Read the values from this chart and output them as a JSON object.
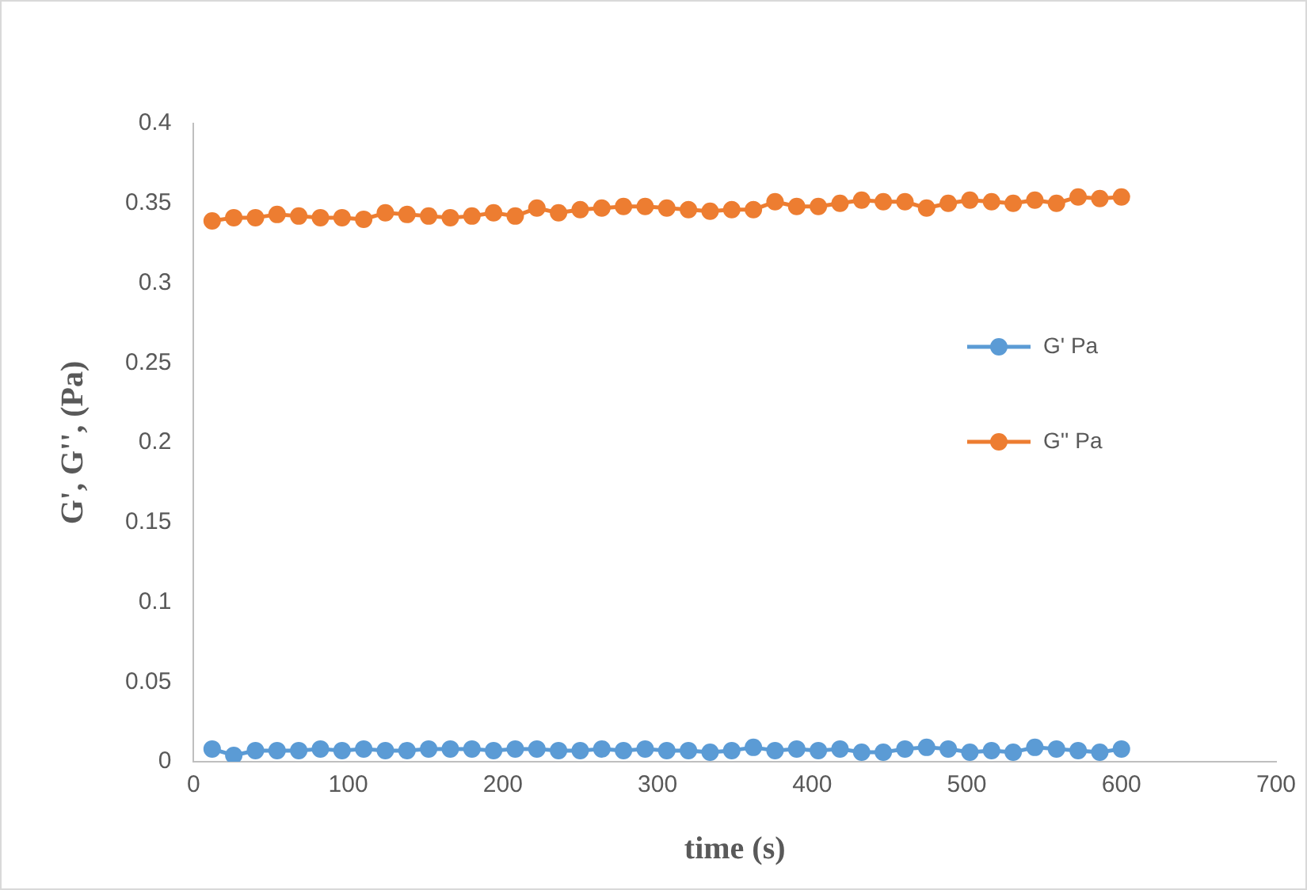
{
  "chart_data": {
    "type": "line",
    "xlabel": "time (s)",
    "ylabel": "G', G'', (Pa)",
    "x": [
      12,
      26,
      40,
      54,
      68,
      82,
      96,
      110,
      124,
      138,
      152,
      166,
      180,
      194,
      208,
      222,
      236,
      250,
      264,
      278,
      292,
      306,
      320,
      334,
      348,
      362,
      376,
      390,
      404,
      418,
      432,
      446,
      460,
      474,
      488,
      502,
      516,
      530,
      544,
      558,
      572,
      586,
      600
    ],
    "series": [
      {
        "name": "G' Pa",
        "color": "#5b9bd5",
        "values": [
          0.008,
          0.004,
          0.007,
          0.007,
          0.007,
          0.008,
          0.007,
          0.008,
          0.007,
          0.007,
          0.008,
          0.008,
          0.008,
          0.007,
          0.008,
          0.008,
          0.007,
          0.007,
          0.008,
          0.007,
          0.008,
          0.007,
          0.007,
          0.006,
          0.007,
          0.009,
          0.007,
          0.008,
          0.007,
          0.008,
          0.006,
          0.006,
          0.008,
          0.009,
          0.008,
          0.006,
          0.007,
          0.006,
          0.009,
          0.008,
          0.007,
          0.006,
          0.008
        ]
      },
      {
        "name": "G'' Pa",
        "color": "#ed7d31",
        "values": [
          0.339,
          0.341,
          0.341,
          0.343,
          0.342,
          0.341,
          0.341,
          0.34,
          0.344,
          0.343,
          0.342,
          0.341,
          0.342,
          0.344,
          0.342,
          0.347,
          0.344,
          0.346,
          0.347,
          0.348,
          0.348,
          0.347,
          0.346,
          0.345,
          0.346,
          0.346,
          0.351,
          0.348,
          0.348,
          0.35,
          0.352,
          0.351,
          0.351,
          0.347,
          0.35,
          0.352,
          0.351,
          0.35,
          0.352,
          0.35,
          0.354,
          0.353,
          0.354
        ]
      }
    ],
    "xlim": [
      0,
      700
    ],
    "xticks": [
      0,
      100,
      200,
      300,
      400,
      500,
      600,
      700
    ],
    "ylim": [
      0,
      0.4
    ],
    "yticks": [
      0,
      0.05,
      0.1,
      0.15,
      0.2,
      0.25,
      0.3,
      0.35,
      0.4
    ],
    "grid": false,
    "legend": "right",
    "marker": "circle",
    "line_style": "solid"
  }
}
